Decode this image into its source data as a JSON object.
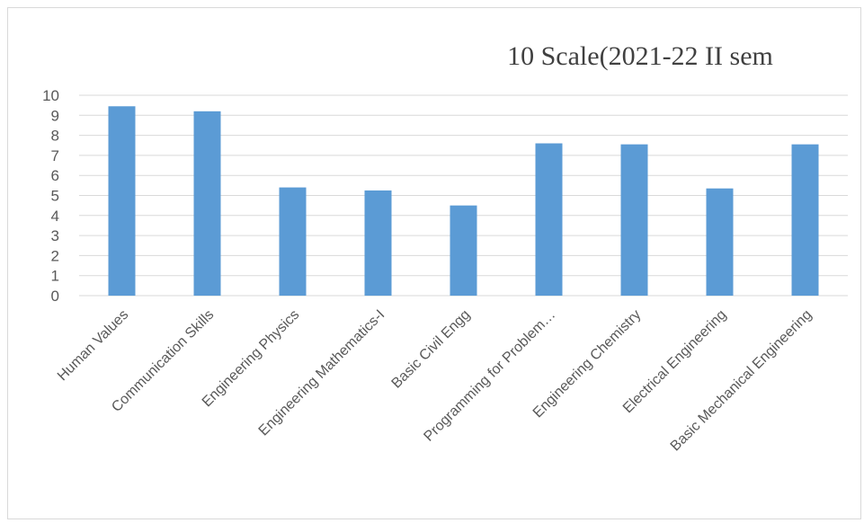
{
  "chart_data": {
    "type": "bar",
    "title": "10 Scale(2021-22  II sem",
    "categories": [
      "Human Values",
      "Communication Skills",
      "Engineering Physics",
      "Engineering Mathematics-I",
      "Basic Civil Engg",
      "Programming for Problem…",
      "Engineering Chemistry",
      "Electrical Engineering",
      "Basic Mechanical Engineering"
    ],
    "values": [
      9.45,
      9.2,
      5.4,
      5.25,
      4.5,
      7.6,
      7.55,
      5.35,
      7.55
    ],
    "ylim": [
      0,
      10
    ],
    "yticks": [
      0,
      1,
      2,
      3,
      4,
      5,
      6,
      7,
      8,
      9,
      10
    ],
    "grid": true,
    "legend": "none",
    "colors": {
      "bar": "#5b9bd5",
      "grid": "#d9d9d9",
      "axis_text": "#595959"
    }
  }
}
